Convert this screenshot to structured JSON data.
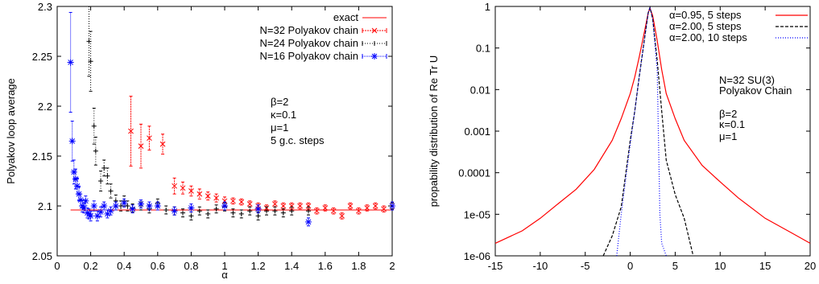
{
  "chart_data": [
    {
      "type": "scatter",
      "xlabel": "α",
      "ylabel": "Polyakov loop average",
      "xlim": [
        0,
        2
      ],
      "ylim": [
        2.05,
        2.3
      ],
      "x_ticks": [
        "0",
        "0.2",
        "0.4",
        "0.6",
        "0.8",
        "1",
        "1.2",
        "1.4",
        "1.6",
        "1.8",
        "2"
      ],
      "y_ticks": [
        "2.05",
        "2.1",
        "2.15",
        "2.2",
        "2.25",
        "2.3"
      ],
      "legend_position": "top-right",
      "annotations": [
        "β=2",
        "κ=0.1",
        "μ=1",
        "5 g.c. steps"
      ],
      "series": [
        {
          "name": "exact",
          "style": "line",
          "color": "#ff0000",
          "points": [
            [
              0.08,
              2.096
            ],
            [
              2.0,
              2.096
            ]
          ]
        },
        {
          "name": "N=32 Polyakov chain",
          "style": "errorbars",
          "color": "#ff0000",
          "points": [
            [
              0.44,
              2.175,
              0.035
            ],
            [
              0.5,
              2.16,
              0.022
            ],
            [
              0.55,
              2.168,
              0.012
            ],
            [
              0.63,
              2.162,
              0.01
            ],
            [
              0.7,
              2.12,
              0.008
            ],
            [
              0.75,
              2.118,
              0.006
            ],
            [
              0.8,
              2.115,
              0.005
            ],
            [
              0.85,
              2.112,
              0.005
            ],
            [
              0.9,
              2.11,
              0.004
            ],
            [
              0.95,
              2.108,
              0.004
            ],
            [
              1.0,
              2.105,
              0.004
            ],
            [
              1.05,
              2.105,
              0.003
            ],
            [
              1.1,
              2.104,
              0.003
            ],
            [
              1.15,
              2.102,
              0.003
            ],
            [
              1.2,
              2.1,
              0.003
            ],
            [
              1.25,
              2.098,
              0.003
            ],
            [
              1.3,
              2.102,
              0.003
            ],
            [
              1.35,
              2.1,
              0.003
            ],
            [
              1.4,
              2.1,
              0.003
            ],
            [
              1.45,
              2.1,
              0.003
            ],
            [
              1.5,
              2.1,
              0.003
            ],
            [
              1.55,
              2.095,
              0.003
            ],
            [
              1.6,
              2.098,
              0.003
            ],
            [
              1.65,
              2.095,
              0.003
            ],
            [
              1.7,
              2.09,
              0.003
            ],
            [
              1.75,
              2.1,
              0.003
            ],
            [
              1.8,
              2.095,
              0.003
            ],
            [
              1.85,
              2.098,
              0.003
            ],
            [
              1.9,
              2.1,
              0.003
            ],
            [
              1.95,
              2.097,
              0.003
            ],
            [
              2.0,
              2.1,
              0.003
            ]
          ]
        },
        {
          "name": "N=24 Polyakov chain",
          "style": "errorbars",
          "color": "#000000",
          "points": [
            [
              0.19,
              2.265,
              0.035
            ],
            [
              0.2,
              2.245,
              0.03
            ],
            [
              0.22,
              2.18,
              0.018
            ],
            [
              0.23,
              2.155,
              0.014
            ],
            [
              0.26,
              2.125,
              0.01
            ],
            [
              0.28,
              2.138,
              0.008
            ],
            [
              0.3,
              2.13,
              0.008
            ],
            [
              0.32,
              2.115,
              0.007
            ],
            [
              0.35,
              2.105,
              0.006
            ],
            [
              0.38,
              2.1,
              0.005
            ],
            [
              0.4,
              2.105,
              0.005
            ],
            [
              0.42,
              2.1,
              0.005
            ],
            [
              0.45,
              2.098,
              0.004
            ],
            [
              0.5,
              2.1,
              0.004
            ],
            [
              0.55,
              2.097,
              0.004
            ],
            [
              0.6,
              2.103,
              0.004
            ],
            [
              0.65,
              2.096,
              0.004
            ],
            [
              0.7,
              2.095,
              0.004
            ],
            [
              0.75,
              2.093,
              0.004
            ],
            [
              0.8,
              2.09,
              0.004
            ],
            [
              0.85,
              2.095,
              0.004
            ],
            [
              0.9,
              2.092,
              0.004
            ],
            [
              0.95,
              2.097,
              0.004
            ],
            [
              1.0,
              2.099,
              0.004
            ],
            [
              1.05,
              2.093,
              0.004
            ],
            [
              1.1,
              2.092,
              0.004
            ],
            [
              1.15,
              2.095,
              0.004
            ],
            [
              1.2,
              2.09,
              0.004
            ],
            [
              1.25,
              2.095,
              0.004
            ],
            [
              1.3,
              2.095,
              0.004
            ],
            [
              1.35,
              2.093,
              0.004
            ],
            [
              1.4,
              2.095,
              0.004
            ],
            [
              1.5,
              2.095,
              0.004
            ],
            [
              2.0,
              2.1,
              0.003
            ]
          ]
        },
        {
          "name": "N=16 Polyakov chain",
          "style": "errorbars",
          "color": "#0000ff",
          "points": [
            [
              0.08,
              2.244,
              0.05
            ],
            [
              0.09,
              2.165,
              0.02
            ],
            [
              0.1,
              2.134,
              0.012
            ],
            [
              0.11,
              2.127,
              0.01
            ],
            [
              0.12,
              2.12,
              0.008
            ],
            [
              0.13,
              2.112,
              0.007
            ],
            [
              0.14,
              2.106,
              0.006
            ],
            [
              0.15,
              2.1,
              0.006
            ],
            [
              0.16,
              2.098,
              0.005
            ],
            [
              0.17,
              2.105,
              0.005
            ],
            [
              0.18,
              2.093,
              0.005
            ],
            [
              0.19,
              2.092,
              0.005
            ],
            [
              0.2,
              2.09,
              0.005
            ],
            [
              0.22,
              2.1,
              0.005
            ],
            [
              0.24,
              2.09,
              0.005
            ],
            [
              0.26,
              2.094,
              0.005
            ],
            [
              0.28,
              2.1,
              0.004
            ],
            [
              0.3,
              2.092,
              0.004
            ],
            [
              0.32,
              2.095,
              0.004
            ],
            [
              0.35,
              2.1,
              0.004
            ],
            [
              0.4,
              2.103,
              0.004
            ],
            [
              0.45,
              2.097,
              0.004
            ],
            [
              0.5,
              2.102,
              0.004
            ],
            [
              0.55,
              2.1,
              0.004
            ],
            [
              0.6,
              2.1,
              0.004
            ],
            [
              0.7,
              2.095,
              0.004
            ],
            [
              0.8,
              2.098,
              0.004
            ],
            [
              1.0,
              2.1,
              0.004
            ],
            [
              1.2,
              2.097,
              0.004
            ],
            [
              1.5,
              2.084,
              0.004
            ],
            [
              2.0,
              2.1,
              0.004
            ]
          ]
        }
      ]
    },
    {
      "type": "line",
      "xlabel": "",
      "ylabel": "propability distribution of Re Tr U",
      "xlim": [
        -15,
        20
      ],
      "ylim": [
        1e-06,
        1
      ],
      "y_scale": "log",
      "x_ticks": [
        "-15",
        "-10",
        "-5",
        "0",
        "5",
        "10",
        "15",
        "20"
      ],
      "y_ticks": [
        "1e-06",
        "1e-05",
        "0.0001",
        "0.001",
        "0.01",
        "0.1",
        "1"
      ],
      "legend_position": "top-right",
      "annotations": [
        "N=32 SU(3)",
        "Polyakov Chain",
        "β=2",
        "κ=0.1",
        "μ=1"
      ],
      "series": [
        {
          "name": "α=0.95,   5 steps",
          "color": "#ff0000",
          "dash": "solid",
          "points": [
            [
              -15,
              2e-06
            ],
            [
              -12,
              4e-06
            ],
            [
              -10,
              8e-06
            ],
            [
              -8,
              1.8e-05
            ],
            [
              -6,
              4e-05
            ],
            [
              -4,
              0.00012
            ],
            [
              -2,
              0.0006
            ],
            [
              -1,
              0.002
            ],
            [
              0,
              0.008
            ],
            [
              0.5,
              0.02
            ],
            [
              1,
              0.06
            ],
            [
              1.5,
              0.2
            ],
            [
              2,
              0.7
            ],
            [
              2.2,
              0.9
            ],
            [
              2.5,
              0.6
            ],
            [
              3,
              0.15
            ],
            [
              3.5,
              0.03
            ],
            [
              4,
              0.008
            ],
            [
              5,
              0.002
            ],
            [
              6,
              0.0006
            ],
            [
              8,
              0.00015
            ],
            [
              10,
              6e-05
            ],
            [
              12,
              2.5e-05
            ],
            [
              15,
              8e-06
            ],
            [
              18,
              3.5e-06
            ],
            [
              20,
              2e-06
            ]
          ]
        },
        {
          "name": "α=2.00,   5 steps",
          "color": "#000000",
          "dash": "dashed",
          "points": [
            [
              -3,
              1e-06
            ],
            [
              -2,
              3e-06
            ],
            [
              -1,
              1.5e-05
            ],
            [
              0,
              0.0006
            ],
            [
              0.5,
              0.003
            ],
            [
              1,
              0.02
            ],
            [
              1.5,
              0.12
            ],
            [
              2,
              0.7
            ],
            [
              2.2,
              0.95
            ],
            [
              2.5,
              0.5
            ],
            [
              3,
              0.05
            ],
            [
              3.5,
              0.003
            ],
            [
              4,
              0.0002
            ],
            [
              5,
              3e-05
            ],
            [
              6,
              8e-06
            ],
            [
              7,
              1e-06
            ]
          ]
        },
        {
          "name": "α=2.00, 10 steps",
          "color": "#0000ff",
          "dash": "dotted",
          "points": [
            [
              -1.5,
              1e-06
            ],
            [
              -1,
              1e-05
            ],
            [
              0,
              0.0005
            ],
            [
              0.5,
              0.003
            ],
            [
              1,
              0.02
            ],
            [
              1.5,
              0.12
            ],
            [
              2,
              0.7
            ],
            [
              2.2,
              0.95
            ],
            [
              2.5,
              0.5
            ],
            [
              3,
              0.03
            ],
            [
              3.3,
              1e-05
            ],
            [
              3.5,
              2e-06
            ],
            [
              4,
              1e-06
            ]
          ]
        }
      ]
    }
  ]
}
